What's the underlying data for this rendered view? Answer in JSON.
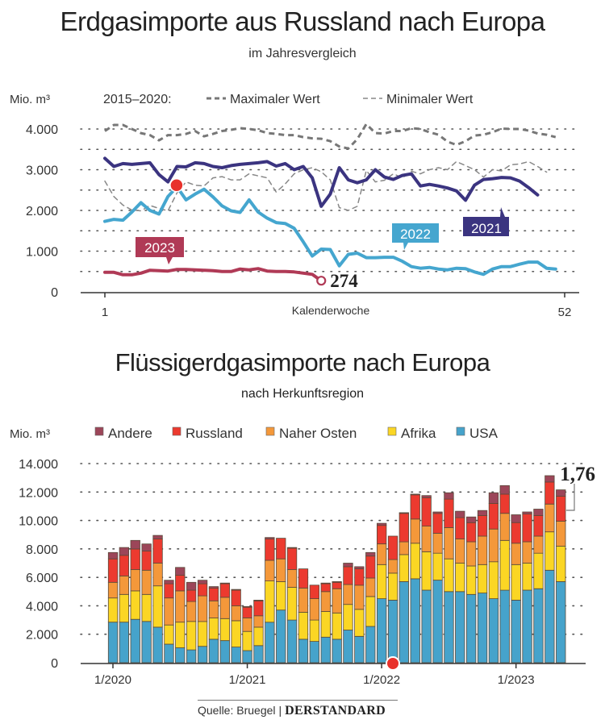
{
  "chart_data": [
    {
      "type": "line",
      "title": "Erdgasimporte aus Russland nach Europa",
      "subtitle": "im Jahresvergleich",
      "ylabel": "Mio. m³",
      "xlabel": "Kalenderwoche",
      "ylim": [
        0,
        4000
      ],
      "yticks": [
        "0",
        "1.000",
        "2.000",
        "3.000",
        "4.000"
      ],
      "ytick_values": [
        0,
        1000,
        2000,
        3000,
        4000
      ],
      "xlim": [
        1,
        52
      ],
      "xticks": [
        "1",
        "52"
      ],
      "grid": true,
      "legend_prefix": "2015–2020:",
      "legend": [
        {
          "name": "Maximaler Wert",
          "style": "dashed-bold"
        },
        {
          "name": "Minimaler Wert",
          "style": "dashed-thin"
        }
      ],
      "series": [
        {
          "name": "Maximaler Wert",
          "color": "#777777",
          "style": "dashed-bold",
          "values": [
            3950,
            4100,
            4100,
            4000,
            3900,
            3850,
            3720,
            3850,
            3850,
            3880,
            3950,
            3820,
            3880,
            3950,
            3980,
            4020,
            4000,
            3970,
            3900,
            3880,
            3850,
            3850,
            3800,
            3770,
            3760,
            3700,
            3570,
            3520,
            3750,
            4120,
            3900,
            3890,
            3950,
            3950,
            4020,
            4000,
            3920,
            3860,
            3690,
            3610,
            3700,
            3840,
            3860,
            3920,
            4010,
            4000,
            4000,
            3960,
            3890,
            3860,
            3800
          ]
        },
        {
          "name": "Minimaler Wert",
          "color": "#888888",
          "style": "dashed-thin",
          "values": [
            2720,
            2340,
            2130,
            2010,
            1990,
            2120,
            2050,
            1990,
            2430,
            2700,
            2620,
            2600,
            2800,
            2830,
            2750,
            2750,
            2900,
            2850,
            2800,
            2450,
            2650,
            2900,
            3000,
            3050,
            2950,
            2750,
            2070,
            2000,
            2100,
            2980,
            2700,
            2740,
            2900,
            2800,
            2960,
            2900,
            3000,
            3050,
            3000,
            3200,
            3100,
            3000,
            2820,
            3000,
            2970,
            3120,
            3140,
            3200,
            3080,
            2940
          ]
        },
        {
          "name": "2021",
          "color": "#3b3480",
          "style": "solid",
          "values": [
            3280,
            3080,
            3150,
            3130,
            3150,
            3170,
            2880,
            2700,
            3080,
            3070,
            3170,
            3150,
            3080,
            3050,
            3100,
            3130,
            3150,
            3170,
            3200,
            3090,
            3150,
            3000,
            3080,
            2800,
            2100,
            2400,
            3050,
            2750,
            2680,
            2750,
            3000,
            2820,
            2760,
            2860,
            2900,
            2600,
            2640,
            2600,
            2550,
            2480,
            2250,
            2620,
            2760,
            2780,
            2810,
            2800,
            2720,
            2560,
            2380
          ]
        },
        {
          "name": "2022",
          "color": "#45a6cf",
          "style": "solid",
          "values": [
            1730,
            1780,
            1760,
            1960,
            2190,
            2000,
            1910,
            2340,
            2580,
            2260,
            2400,
            2520,
            2330,
            2110,
            1990,
            1950,
            2260,
            1960,
            1810,
            1700,
            1680,
            1560,
            1230,
            880,
            1050,
            1040,
            640,
            920,
            950,
            840,
            840,
            850,
            850,
            750,
            620,
            580,
            600,
            560,
            540,
            580,
            570,
            490,
            430,
            560,
            620,
            620,
            680,
            730,
            730,
            580,
            560
          ]
        },
        {
          "name": "2023",
          "color": "#b03a56",
          "style": "solid",
          "values": [
            480,
            480,
            420,
            420,
            460,
            530,
            520,
            510,
            550,
            550,
            540,
            530,
            520,
            500,
            500,
            560,
            540,
            570,
            510,
            500,
            500,
            490,
            460,
            430,
            274
          ]
        }
      ],
      "annotations": [
        {
          "text": "2023",
          "series": "2023"
        },
        {
          "text": "2022",
          "series": "2022"
        },
        {
          "text": "2021",
          "series": "2021"
        },
        {
          "text": "274",
          "label": "latest value 2023"
        },
        {
          "marker": "red-dot",
          "series_crossing": [
            "2021",
            "2022"
          ],
          "week": 9
        }
      ]
    },
    {
      "type": "bar",
      "stacked": true,
      "title": "Flüssigerdgasimporte nach Europa",
      "subtitle": "nach Herkunftsregion",
      "ylabel": "Mio. m³",
      "ylim": [
        0,
        14000
      ],
      "yticks": [
        "0",
        "2.000",
        "4.000",
        "6.000",
        "8.000",
        "10.000",
        "12.000",
        "14.000"
      ],
      "ytick_values": [
        0,
        2000,
        4000,
        6000,
        8000,
        10000,
        12000,
        14000
      ],
      "xticks": [
        "1/2020",
        "1/2021",
        "1/2022",
        "1/2023"
      ],
      "xtick_indices": [
        0,
        12,
        24,
        36
      ],
      "grid": true,
      "legend": [
        "Andere",
        "Russland",
        "Naher Osten",
        "Afrika",
        "USA"
      ],
      "categories": [
        "1/2020",
        "2/2020",
        "3/2020",
        "4/2020",
        "5/2020",
        "6/2020",
        "7/2020",
        "8/2020",
        "9/2020",
        "10/2020",
        "11/2020",
        "12/2020",
        "1/2021",
        "2/2021",
        "3/2021",
        "4/2021",
        "5/2021",
        "6/2021",
        "7/2021",
        "8/2021",
        "9/2021",
        "10/2021",
        "11/2021",
        "12/2021",
        "1/2022",
        "2/2022",
        "3/2022",
        "4/2022",
        "5/2022",
        "6/2022",
        "7/2022",
        "8/2022",
        "9/2022",
        "10/2022",
        "11/2022",
        "12/2022",
        "1/2023",
        "2/2023",
        "3/2023",
        "4/2023",
        "5/2023"
      ],
      "series": [
        {
          "name": "USA",
          "color": "#46a3cb",
          "values": [
            2850,
            2850,
            3050,
            2900,
            2500,
            1300,
            1050,
            900,
            1150,
            1650,
            1550,
            1100,
            850,
            1200,
            2850,
            3700,
            3000,
            1650,
            1500,
            1800,
            1650,
            2300,
            1850,
            2550,
            4500,
            4400,
            5700,
            5900,
            5100,
            5800,
            5000,
            5000,
            4800,
            4900,
            4500,
            5100,
            4400,
            5100,
            5200,
            6500,
            5700
          ]
        },
        {
          "name": "Afrika",
          "color": "#fbd624",
          "values": [
            1700,
            1950,
            2000,
            1900,
            2900,
            1350,
            1800,
            2000,
            1750,
            1500,
            1550,
            1850,
            1350,
            1300,
            2900,
            2000,
            2300,
            1900,
            1500,
            1800,
            1850,
            1800,
            1900,
            2100,
            2400,
            1900,
            1900,
            2500,
            2700,
            1900,
            2300,
            2000,
            2000,
            2000,
            2600,
            3500,
            2500,
            1900,
            2500,
            2700,
            2500
          ]
        },
        {
          "name": "Naher Osten",
          "color": "#f4983a",
          "values": [
            1100,
            1300,
            1500,
            1700,
            1600,
            1900,
            2200,
            1400,
            1800,
            1200,
            1500,
            1050,
            950,
            800,
            1450,
            1600,
            1250,
            1700,
            1500,
            1400,
            1700,
            1400,
            1700,
            1300,
            1450,
            950,
            900,
            1700,
            1800,
            1400,
            2200,
            1700,
            1700,
            2000,
            2300,
            1900,
            1500,
            1500,
            1200,
            1950,
            1750
          ]
        },
        {
          "name": "Russland",
          "color": "#ec3a2f",
          "values": [
            1650,
            1450,
            1450,
            1350,
            1700,
            1000,
            1100,
            800,
            850,
            900,
            950,
            1100,
            750,
            1050,
            1500,
            1450,
            1500,
            1350,
            950,
            550,
            450,
            1250,
            1150,
            1550,
            1300,
            1650,
            2000,
            1700,
            2000,
            1400,
            2000,
            1500,
            1350,
            1450,
            1800,
            1350,
            1450,
            1950,
            1450,
            1550,
            1750
          ]
        },
        {
          "name": "Andere",
          "color": "#9c4659",
          "values": [
            450,
            550,
            600,
            500,
            250,
            250,
            550,
            550,
            250,
            100,
            50,
            50,
            50,
            50,
            100,
            0,
            50,
            0,
            0,
            50,
            50,
            250,
            150,
            250,
            150,
            0,
            50,
            50,
            150,
            100,
            450,
            450,
            400,
            350,
            750,
            600,
            550,
            150,
            450,
            450,
            450
          ]
        }
      ],
      "annotations": [
        {
          "text": "1,76",
          "label": "latest Russland share"
        },
        {
          "marker": "red-dot",
          "at": "2/2022"
        }
      ]
    }
  ],
  "labels": {
    "chart1_title": "Erdgasimporte aus Russland nach Europa",
    "chart1_subtitle": "im Jahresvergleich",
    "chart1_unit": "Mio. m³",
    "chart1_legend_prefix": "2015–2020:",
    "chart1_legend_max": "Maximaler Wert",
    "chart1_legend_min": "Minimaler Wert",
    "chart1_xlabel": "Kalenderwoche",
    "chart1_label_2023": "2023",
    "chart1_label_2022": "2022",
    "chart1_label_2021": "2021",
    "chart1_last_value": "274",
    "chart2_title": "Flüssigerdgasimporte nach Europa",
    "chart2_subtitle": "nach Herkunftsregion",
    "chart2_unit": "Mio. m³",
    "chart2_callout": "1,76"
  },
  "footer": {
    "source": "Quelle: Bruegel",
    "separator": "|",
    "brand": "DERSTANDARD"
  }
}
